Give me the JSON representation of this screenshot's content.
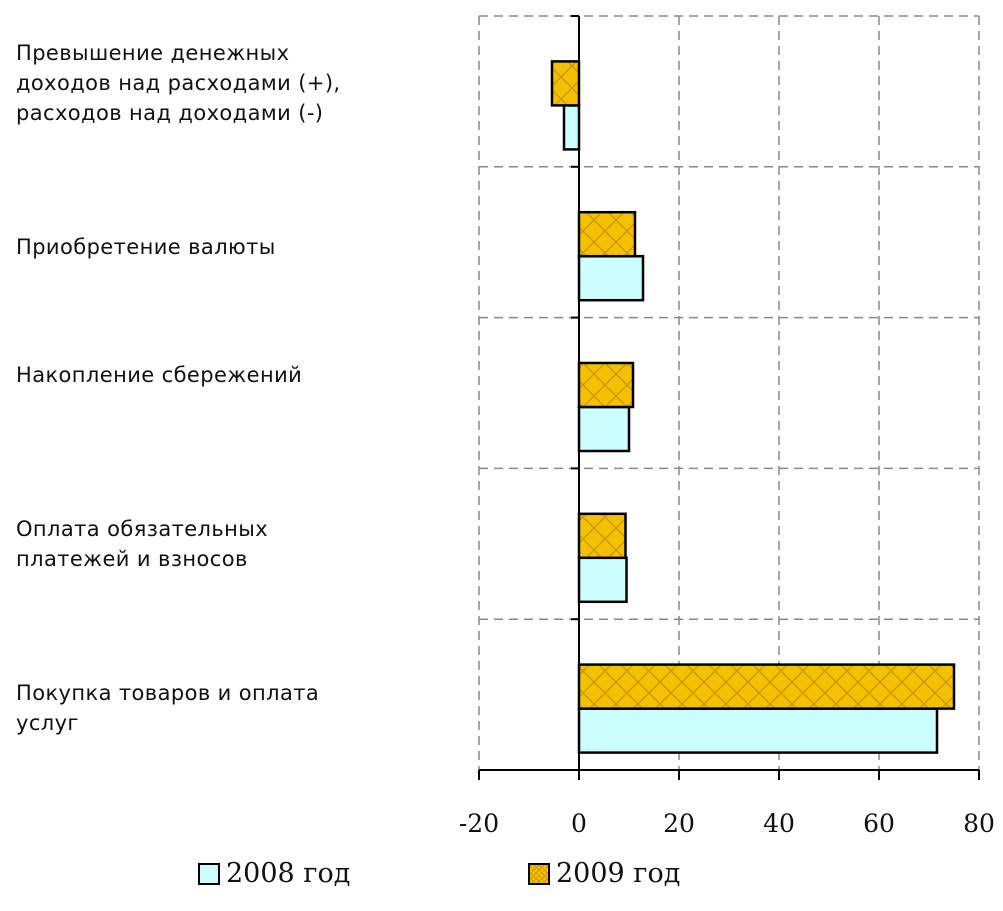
{
  "chart_data": {
    "type": "bar",
    "orientation": "horizontal",
    "categories": [
      "Превышение денежных\nдоходов над расходами (+),\nрасходов над доходами (-)",
      "Приобретение валюты",
      "Накопление сбережений",
      "Оплата обязательных\nплатежей и взносов",
      "Покупка товаров и оплата\nуслуг"
    ],
    "series": [
      {
        "name": "2008 год",
        "values": [
          -3,
          12.8,
          10,
          9.5,
          71.6
        ],
        "color": "#ccffff"
      },
      {
        "name": "2009 год",
        "values": [
          -5.4,
          11.2,
          10.8,
          9.3,
          75
        ],
        "color": "#f5c000"
      }
    ],
    "xlim": [
      -20,
      80
    ],
    "xticks": [
      "-20",
      "0",
      "20",
      "40",
      "60",
      "80"
    ],
    "grid": true,
    "legend_position": "bottom",
    "title": "",
    "xlabel": "",
    "ylabel": ""
  }
}
